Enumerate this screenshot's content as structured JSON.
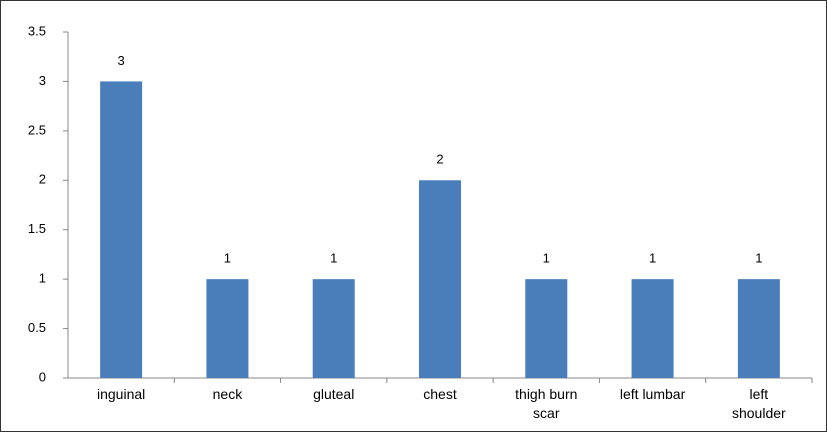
{
  "chart_data": {
    "type": "bar",
    "categories": [
      "inguinal",
      "neck",
      "gluteal",
      "chest",
      "thigh burn scar",
      "left lumbar",
      "left shoulder"
    ],
    "values": [
      3,
      1,
      1,
      2,
      1,
      1,
      1
    ],
    "color": "#4a7ebb",
    "ylim": [
      0,
      3.5
    ],
    "yticks": [
      0,
      0.5,
      1,
      1.5,
      2,
      2.5,
      3,
      3.5
    ],
    "grid": false
  }
}
